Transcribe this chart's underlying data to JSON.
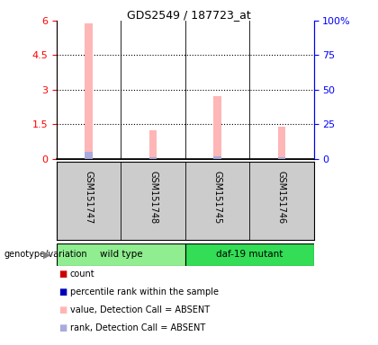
{
  "title": "GDS2549 / 187723_at",
  "samples": [
    "GSM151747",
    "GSM151748",
    "GSM151745",
    "GSM151746"
  ],
  "pink_bars": [
    5.9,
    1.25,
    2.72,
    1.4
  ],
  "blue_bars": [
    0.28,
    0.05,
    0.12,
    0.05
  ],
  "ylim_left": [
    0,
    6
  ],
  "ylim_right": [
    0,
    100
  ],
  "yticks_left": [
    0,
    1.5,
    3.0,
    4.5,
    6.0
  ],
  "ytick_labels_left": [
    "0",
    "1.5",
    "3",
    "4.5",
    "6"
  ],
  "yticks_right": [
    0,
    25,
    50,
    75,
    100
  ],
  "ytick_labels_right": [
    "0",
    "25",
    "50",
    "75",
    "100%"
  ],
  "dotted_lines": [
    1.5,
    3.0,
    4.5
  ],
  "bar_width": 0.12,
  "group_label": "genotype/variation",
  "wt_label": "wild type",
  "daf_label": "daf-19 mutant",
  "legend_labels": [
    "count",
    "percentile rank within the sample",
    "value, Detection Call = ABSENT",
    "rank, Detection Call = ABSENT"
  ],
  "bg_color": "#FFFFFF",
  "gray_bg": "#CCCCCC",
  "light_green": "#90EE90",
  "dark_green": "#33DD55",
  "pink_color": "#FFB6B6",
  "blue_color": "#AAAADD",
  "red_color": "#CC0000",
  "dark_blue_color": "#0000BB"
}
